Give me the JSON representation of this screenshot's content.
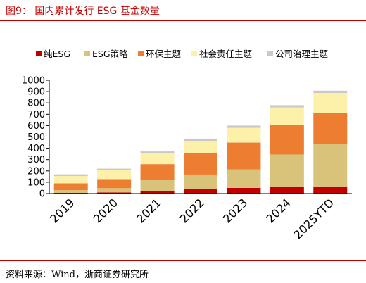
{
  "figure": {
    "title": "图9： 国内累计发行 ESG 基金数量",
    "source": "资料来源：Wind，浙商证券研究所"
  },
  "chart_data": {
    "type": "bar",
    "stacked": true,
    "categories": [
      "2019",
      "2020",
      "2021",
      "2022",
      "2023",
      "2024",
      "2025YTD"
    ],
    "series": [
      {
        "name": "纯ESG",
        "color": "#c00000",
        "values": [
          6,
          10,
          25,
          38,
          50,
          62,
          63
        ]
      },
      {
        "name": "ESG策略",
        "color": "#d9c27a",
        "values": [
          24,
          38,
          95,
          130,
          163,
          283,
          378
        ]
      },
      {
        "name": "环保主题",
        "color": "#ed7d31",
        "values": [
          60,
          80,
          140,
          190,
          237,
          260,
          272
        ]
      },
      {
        "name": "社会责任主题",
        "color": "#fdf1a9",
        "values": [
          65,
          77,
          95,
          107,
          130,
          155,
          175
        ]
      },
      {
        "name": "公司治理主题",
        "color": "#c9c9c9",
        "values": [
          15,
          15,
          17,
          20,
          20,
          20,
          20
        ]
      }
    ],
    "ylim": [
      0,
      1000
    ],
    "yticks": [
      0,
      100,
      200,
      300,
      400,
      500,
      600,
      700,
      800,
      900,
      1000
    ],
    "legend_position": "top",
    "grid": false
  }
}
